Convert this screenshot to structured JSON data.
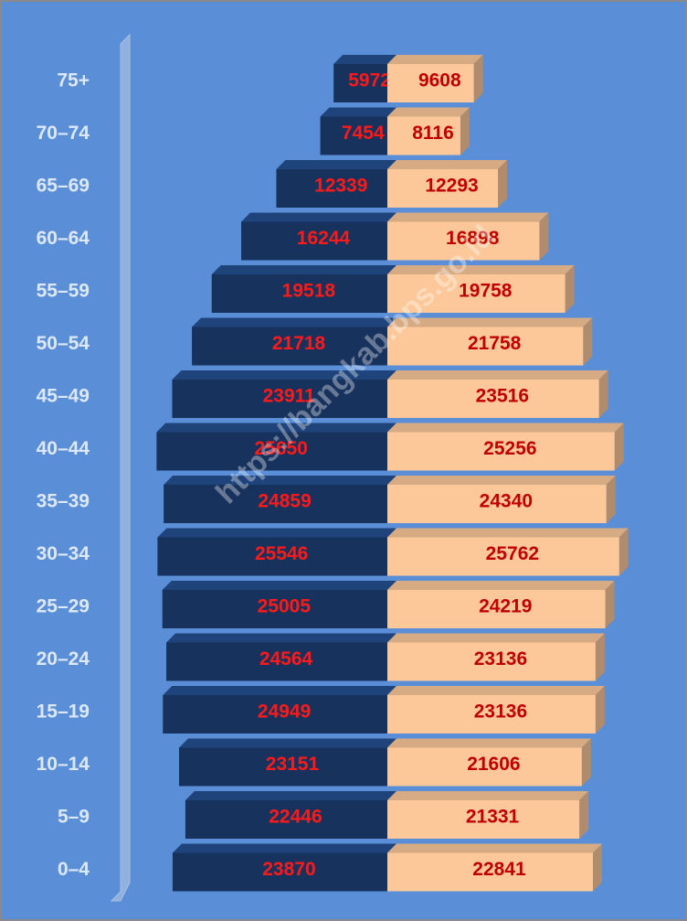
{
  "chart_data": {
    "type": "pyramid",
    "categories": [
      "75+",
      "70–74",
      "65–69",
      "60–64",
      "55–59",
      "50–54",
      "45–49",
      "40–44",
      "35–39",
      "30–34",
      "25–29",
      "20–24",
      "15–19",
      "10–14",
      "5–9",
      "0–4"
    ],
    "series": [
      {
        "color": "#17325c",
        "label_color": "#ff1a1a",
        "values": [
          5972,
          7454,
          12339,
          16244,
          19518,
          21718,
          23911,
          25650,
          24859,
          25546,
          25005,
          24564,
          24949,
          23151,
          22446,
          23870
        ]
      },
      {
        "color": "#fcc89a",
        "label_color": "#c00000",
        "values": [
          9608,
          8116,
          12293,
          16898,
          19758,
          21758,
          23516,
          25256,
          24340,
          25762,
          24219,
          23136,
          23136,
          21606,
          21331,
          22841
        ]
      }
    ],
    "annotations": [
      "https://bangkab.bps.go.id"
    ]
  }
}
